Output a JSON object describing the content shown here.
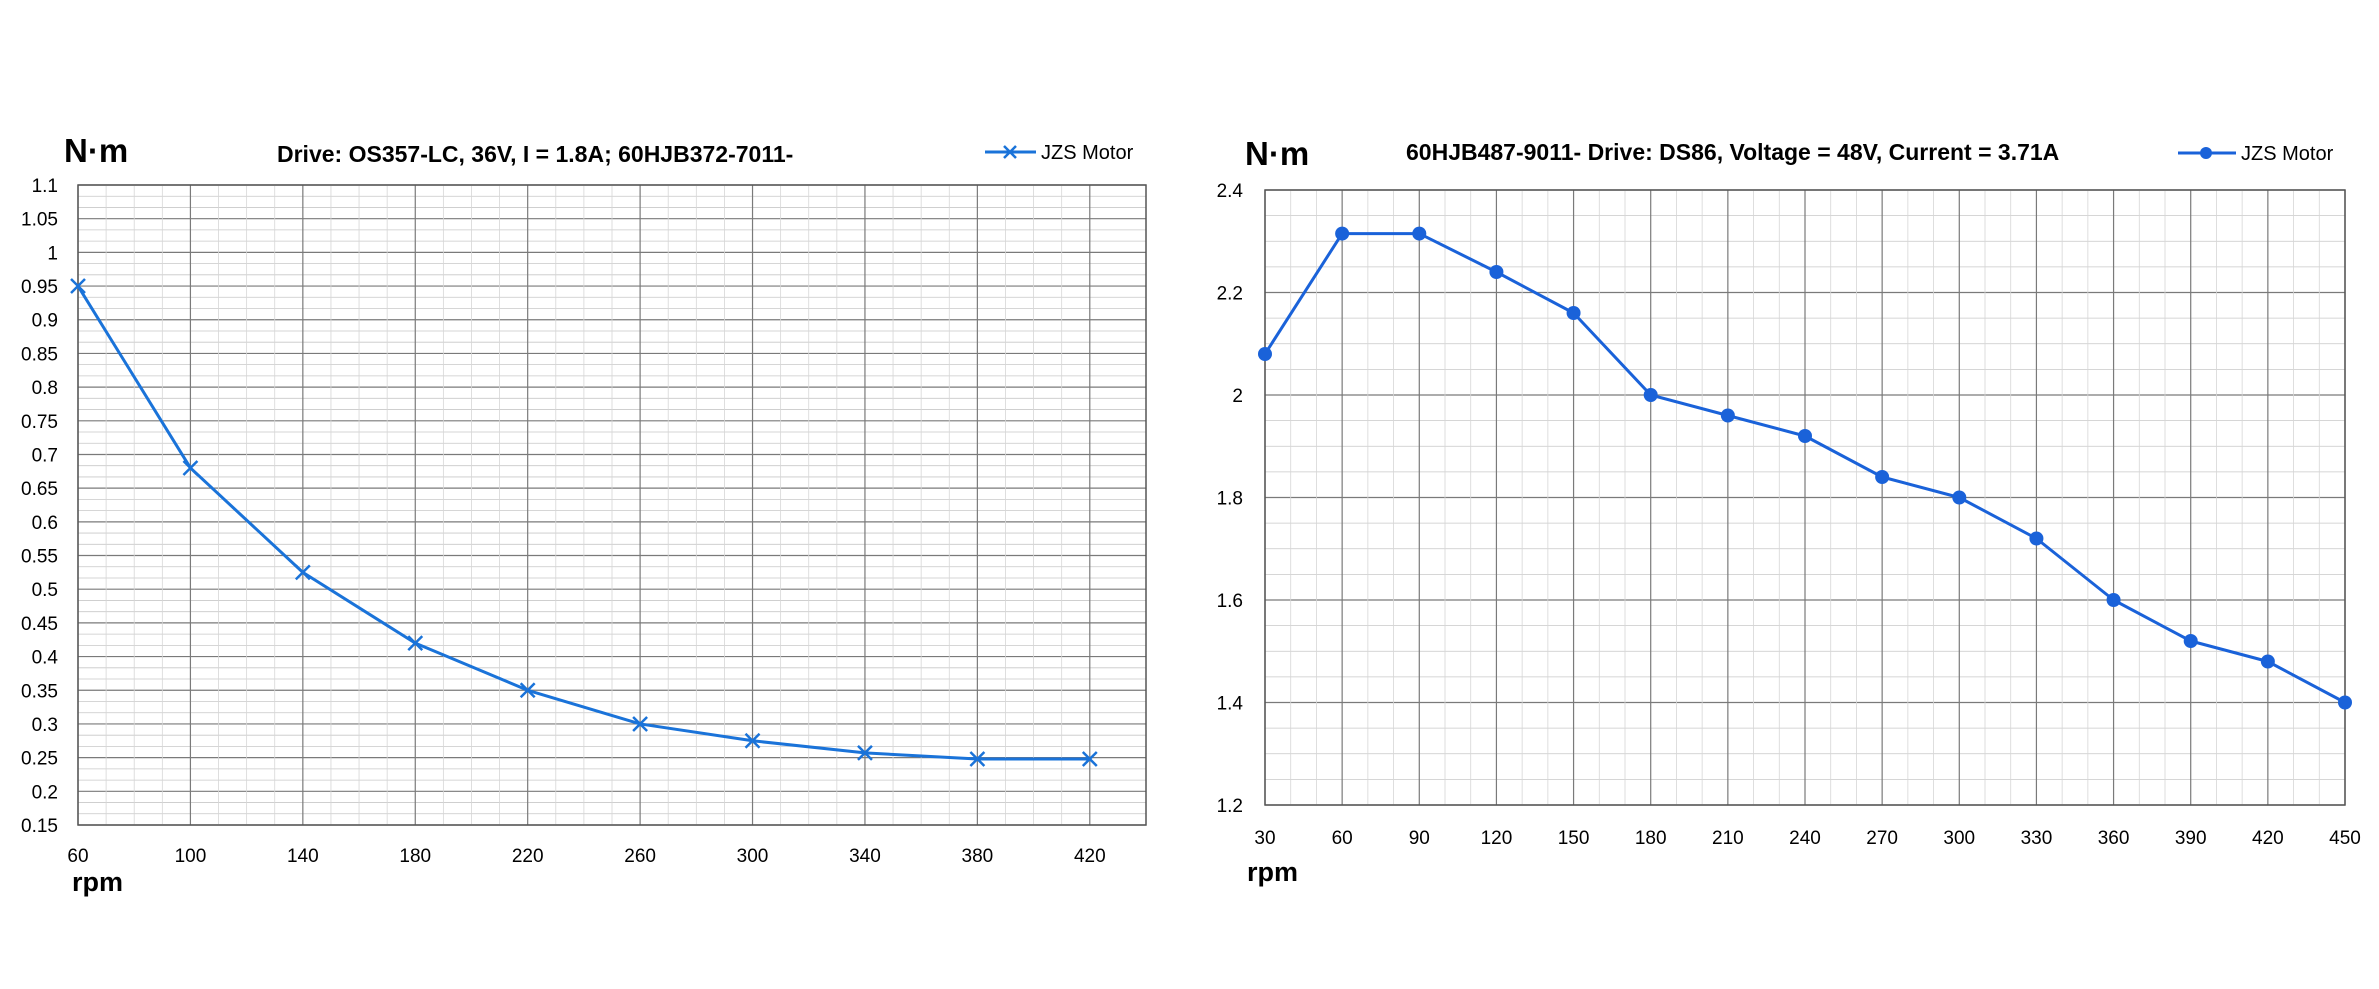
{
  "chart_data": [
    {
      "type": "line",
      "title": "Drive:  OS357-LC,    36V,   I = 1.8A;  60HJB372-7011-",
      "ylabel": "N·m",
      "xlabel": "rpm",
      "x": [
        60,
        100,
        140,
        180,
        220,
        260,
        300,
        340,
        380,
        420
      ],
      "xlim": [
        60,
        440
      ],
      "ylim": [
        0.15,
        1.1
      ],
      "ytick_step": 0.05,
      "grid": true,
      "legend_position": "top-right",
      "marker": "x",
      "color": "#1a73d9",
      "series": [
        {
          "name": "JZS Motor",
          "values": [
            0.95,
            0.68,
            0.525,
            0.42,
            0.35,
            0.3,
            0.275,
            0.257,
            0.248,
            0.248
          ]
        }
      ]
    },
    {
      "type": "line",
      "title": "60HJB487-9011- Drive: DS86, Voltage = 48V,  Current = 3.71A",
      "ylabel": "N·m",
      "xlabel": "rpm",
      "x": [
        30,
        60,
        90,
        120,
        150,
        180,
        210,
        240,
        270,
        300,
        330,
        360,
        390,
        420,
        450
      ],
      "xlim": [
        30,
        450
      ],
      "ylim": [
        1.2,
        2.4
      ],
      "ytick_step": 0.2,
      "grid": true,
      "legend_position": "top-right",
      "marker": "circle",
      "color": "#1a62d9",
      "series": [
        {
          "name": "JZS Motor",
          "values": [
            2.08,
            2.315,
            2.315,
            2.24,
            2.16,
            2.0,
            1.96,
            1.92,
            1.84,
            1.8,
            1.72,
            1.6,
            1.52,
            1.48,
            1.4
          ]
        }
      ]
    }
  ]
}
